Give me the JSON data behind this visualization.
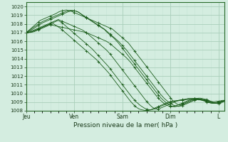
{
  "xlabel": "Pression niveau de la mer( hPa )",
  "ylim": [
    1008,
    1020.5
  ],
  "yticks": [
    1008,
    1009,
    1010,
    1011,
    1012,
    1013,
    1014,
    1015,
    1016,
    1017,
    1018,
    1019,
    1020
  ],
  "xtick_labels": [
    "Jeu",
    "Ven",
    "Sam",
    "Dim",
    "L"
  ],
  "xtick_positions": [
    0,
    24,
    48,
    72,
    96
  ],
  "bg_color": "#d4ede0",
  "grid_color_major": "#aacfba",
  "grid_color_minor": "#c4e4d4",
  "line_color": "#1a5c1a",
  "num_hours": 100,
  "series": [
    [
      1017.0,
      1017.2,
      1017.4,
      1017.6,
      1017.8,
      1018.0,
      1018.2,
      1018.4,
      1018.5,
      1018.6,
      1018.7,
      1018.8,
      1018.9,
      1019.0,
      1019.1,
      1019.2,
      1019.35,
      1019.45,
      1019.5,
      1019.55,
      1019.6,
      1019.55,
      1019.5,
      1019.4,
      1019.3,
      1019.2,
      1019.1,
      1019.0,
      1018.9,
      1018.8,
      1018.7,
      1018.6,
      1018.5,
      1018.4,
      1018.3,
      1018.2,
      1018.1,
      1018.0,
      1017.9,
      1017.8,
      1017.7,
      1017.6,
      1017.5,
      1017.4,
      1017.2,
      1017.0,
      1016.8,
      1016.6,
      1016.4,
      1016.2,
      1016.0,
      1015.8,
      1015.5,
      1015.2,
      1014.9,
      1014.6,
      1014.3,
      1014.0,
      1013.7,
      1013.4,
      1013.1,
      1012.8,
      1012.5,
      1012.2,
      1011.9,
      1011.6,
      1011.3,
      1011.0,
      1010.7,
      1010.4,
      1010.1,
      1009.8,
      1009.5,
      1009.2,
      1009.0,
      1008.8,
      1008.7,
      1008.7,
      1008.8,
      1008.9,
      1009.0,
      1009.1,
      1009.2,
      1009.3,
      1009.35,
      1009.4,
      1009.45,
      1009.45,
      1009.4,
      1009.35,
      1009.3,
      1009.2,
      1009.1,
      1009.0,
      1008.9,
      1008.85,
      1008.8,
      1008.85,
      1009.0,
      1009.1
    ],
    [
      1017.0,
      1017.15,
      1017.3,
      1017.5,
      1017.65,
      1017.8,
      1017.95,
      1018.1,
      1018.25,
      1018.35,
      1018.45,
      1018.55,
      1018.65,
      1018.75,
      1018.85,
      1018.95,
      1019.05,
      1019.15,
      1019.25,
      1019.35,
      1019.45,
      1019.5,
      1019.55,
      1019.55,
      1019.5,
      1019.45,
      1019.35,
      1019.2,
      1019.05,
      1018.9,
      1018.75,
      1018.6,
      1018.45,
      1018.3,
      1018.15,
      1018.0,
      1017.85,
      1017.7,
      1017.55,
      1017.4,
      1017.2,
      1017.0,
      1016.8,
      1016.6,
      1016.4,
      1016.2,
      1016.0,
      1015.75,
      1015.5,
      1015.25,
      1015.0,
      1014.7,
      1014.4,
      1014.1,
      1013.8,
      1013.5,
      1013.2,
      1012.9,
      1012.6,
      1012.3,
      1012.0,
      1011.7,
      1011.4,
      1011.1,
      1010.8,
      1010.5,
      1010.2,
      1009.9,
      1009.65,
      1009.4,
      1009.2,
      1009.0,
      1008.85,
      1008.7,
      1008.6,
      1008.55,
      1008.5,
      1008.55,
      1008.6,
      1008.7,
      1008.8,
      1008.9,
      1009.0,
      1009.1,
      1009.2,
      1009.3,
      1009.35,
      1009.35,
      1009.3,
      1009.25,
      1009.2,
      1009.1,
      1009.0,
      1008.9,
      1008.85,
      1008.85,
      1008.9,
      1009.0,
      1009.1,
      1009.2
    ],
    [
      1017.0,
      1017.1,
      1017.2,
      1017.35,
      1017.5,
      1017.65,
      1017.8,
      1017.95,
      1018.1,
      1018.2,
      1018.3,
      1018.4,
      1018.5,
      1018.6,
      1018.7,
      1018.8,
      1018.9,
      1019.0,
      1019.1,
      1019.2,
      1019.3,
      1019.4,
      1019.45,
      1019.5,
      1019.5,
      1019.45,
      1019.35,
      1019.2,
      1019.0,
      1018.85,
      1018.7,
      1018.55,
      1018.4,
      1018.25,
      1018.1,
      1017.95,
      1017.8,
      1017.65,
      1017.5,
      1017.35,
      1017.1,
      1016.9,
      1016.7,
      1016.5,
      1016.3,
      1016.05,
      1015.8,
      1015.5,
      1015.2,
      1014.9,
      1014.6,
      1014.3,
      1014.0,
      1013.7,
      1013.4,
      1013.1,
      1012.8,
      1012.5,
      1012.2,
      1011.9,
      1011.6,
      1011.3,
      1011.0,
      1010.7,
      1010.4,
      1010.1,
      1009.8,
      1009.55,
      1009.3,
      1009.1,
      1008.9,
      1008.75,
      1008.6,
      1008.5,
      1008.45,
      1008.5,
      1008.55,
      1008.6,
      1008.7,
      1008.8,
      1008.9,
      1009.0,
      1009.1,
      1009.2,
      1009.25,
      1009.3,
      1009.3,
      1009.25,
      1009.2,
      1009.15,
      1009.1,
      1009.0,
      1008.9,
      1008.85,
      1008.85,
      1008.9,
      1009.0,
      1009.05,
      1009.1,
      1009.15
    ],
    [
      1017.0,
      1017.05,
      1017.1,
      1017.2,
      1017.3,
      1017.4,
      1017.5,
      1017.6,
      1017.7,
      1017.8,
      1017.9,
      1018.0,
      1018.1,
      1018.2,
      1018.3,
      1018.4,
      1018.5,
      1018.4,
      1018.3,
      1018.2,
      1018.1,
      1018.0,
      1017.9,
      1017.8,
      1017.7,
      1017.6,
      1017.5,
      1017.4,
      1017.3,
      1017.15,
      1017.0,
      1016.8,
      1016.6,
      1016.4,
      1016.2,
      1016.0,
      1015.8,
      1015.6,
      1015.4,
      1015.2,
      1015.0,
      1014.75,
      1014.5,
      1014.2,
      1013.9,
      1013.6,
      1013.3,
      1013.0,
      1012.7,
      1012.4,
      1012.1,
      1011.8,
      1011.5,
      1011.2,
      1010.9,
      1010.6,
      1010.3,
      1010.0,
      1009.7,
      1009.4,
      1009.1,
      1008.85,
      1008.6,
      1008.4,
      1008.25,
      1008.2,
      1008.2,
      1008.3,
      1008.4,
      1008.5,
      1008.6,
      1008.7,
      1008.8,
      1008.9,
      1009.0,
      1009.1,
      1009.15,
      1009.2,
      1009.25,
      1009.3,
      1009.35,
      1009.4,
      1009.4,
      1009.4,
      1009.4,
      1009.4,
      1009.35,
      1009.3,
      1009.25,
      1009.2,
      1009.1,
      1009.0,
      1008.95,
      1008.9,
      1008.9,
      1008.95,
      1009.0,
      1009.05,
      1009.1,
      1009.15
    ],
    [
      1017.0,
      1017.0,
      1017.05,
      1017.1,
      1017.2,
      1017.3,
      1017.4,
      1017.5,
      1017.6,
      1017.7,
      1017.8,
      1017.9,
      1018.0,
      1018.1,
      1018.2,
      1018.3,
      1018.4,
      1018.25,
      1018.1,
      1017.9,
      1017.7,
      1017.5,
      1017.3,
      1017.1,
      1016.9,
      1016.7,
      1016.5,
      1016.3,
      1016.1,
      1015.9,
      1015.7,
      1015.5,
      1015.3,
      1015.1,
      1014.85,
      1014.6,
      1014.35,
      1014.1,
      1013.85,
      1013.6,
      1013.35,
      1013.1,
      1012.8,
      1012.5,
      1012.2,
      1011.9,
      1011.6,
      1011.3,
      1011.0,
      1010.7,
      1010.4,
      1010.1,
      1009.8,
      1009.5,
      1009.25,
      1009.0,
      1008.8,
      1008.6,
      1008.45,
      1008.3,
      1008.2,
      1008.15,
      1008.1,
      1008.15,
      1008.2,
      1008.3,
      1008.4,
      1008.5,
      1008.6,
      1008.7,
      1008.8,
      1008.9,
      1009.0,
      1009.05,
      1009.1,
      1009.15,
      1009.2,
      1009.25,
      1009.3,
      1009.3,
      1009.35,
      1009.4,
      1009.4,
      1009.4,
      1009.4,
      1009.35,
      1009.3,
      1009.3,
      1009.25,
      1009.2,
      1009.1,
      1009.0,
      1008.95,
      1008.9,
      1008.9,
      1008.95,
      1009.0,
      1009.05,
      1009.1,
      1009.1
    ],
    [
      1017.0,
      1017.0,
      1017.05,
      1017.1,
      1017.2,
      1017.3,
      1017.4,
      1017.5,
      1017.6,
      1017.7,
      1017.8,
      1017.9,
      1018.0,
      1018.1,
      1017.95,
      1017.8,
      1017.65,
      1017.5,
      1017.3,
      1017.1,
      1016.9,
      1016.7,
      1016.5,
      1016.3,
      1016.1,
      1015.9,
      1015.7,
      1015.5,
      1015.3,
      1015.1,
      1014.9,
      1014.7,
      1014.5,
      1014.3,
      1014.1,
      1013.9,
      1013.65,
      1013.4,
      1013.15,
      1012.9,
      1012.65,
      1012.4,
      1012.1,
      1011.8,
      1011.5,
      1011.2,
      1010.9,
      1010.6,
      1010.3,
      1010.0,
      1009.7,
      1009.4,
      1009.1,
      1008.85,
      1008.6,
      1008.4,
      1008.25,
      1008.15,
      1008.1,
      1008.05,
      1008.05,
      1008.05,
      1008.1,
      1008.2,
      1008.3,
      1008.4,
      1008.5,
      1008.6,
      1008.7,
      1008.8,
      1008.9,
      1009.0,
      1009.05,
      1009.1,
      1009.15,
      1009.15,
      1009.2,
      1009.2,
      1009.2,
      1009.25,
      1009.3,
      1009.3,
      1009.3,
      1009.3,
      1009.3,
      1009.3,
      1009.25,
      1009.25,
      1009.2,
      1009.1,
      1009.0,
      1008.95,
      1008.9,
      1008.9,
      1008.9,
      1008.95,
      1009.0,
      1009.0,
      1009.05,
      1009.1
    ],
    [
      1017.0,
      1017.0,
      1017.0,
      1017.05,
      1017.1,
      1017.2,
      1017.3,
      1017.4,
      1017.5,
      1017.6,
      1017.7,
      1017.8,
      1017.9,
      1017.85,
      1017.8,
      1017.75,
      1017.7,
      1017.65,
      1017.6,
      1017.55,
      1017.5,
      1017.45,
      1017.4,
      1017.35,
      1017.3,
      1017.25,
      1017.2,
      1017.15,
      1017.1,
      1017.05,
      1017.0,
      1016.9,
      1016.8,
      1016.7,
      1016.6,
      1016.5,
      1016.4,
      1016.3,
      1016.2,
      1016.1,
      1016.0,
      1015.85,
      1015.7,
      1015.5,
      1015.3,
      1015.1,
      1014.9,
      1014.7,
      1014.5,
      1014.3,
      1014.1,
      1013.85,
      1013.6,
      1013.3,
      1013.0,
      1012.7,
      1012.4,
      1012.1,
      1011.8,
      1011.5,
      1011.2,
      1010.9,
      1010.6,
      1010.3,
      1010.0,
      1009.7,
      1009.45,
      1009.2,
      1009.0,
      1008.8,
      1008.65,
      1008.55,
      1008.5,
      1008.5,
      1008.55,
      1008.6,
      1008.7,
      1008.8,
      1008.9,
      1009.0,
      1009.1,
      1009.2,
      1009.3,
      1009.35,
      1009.4,
      1009.4,
      1009.4,
      1009.35,
      1009.3,
      1009.25,
      1009.2,
      1009.15,
      1009.1,
      1009.05,
      1009.05,
      1009.1,
      1009.1,
      1009.15,
      1009.2,
      1009.2
    ]
  ]
}
